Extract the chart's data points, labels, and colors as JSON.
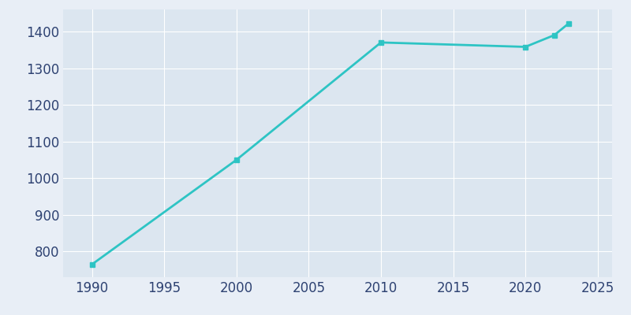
{
  "years": [
    1990,
    2000,
    2010,
    2020,
    2022,
    2023
  ],
  "population": [
    765,
    1050,
    1370,
    1358,
    1390,
    1422
  ],
  "line_color": "#2EC4C4",
  "background_color": "#E8EEF6",
  "plot_bg_color": "#DCE6F0",
  "xlim": [
    1988,
    2026
  ],
  "ylim": [
    730,
    1460
  ],
  "yticks": [
    800,
    900,
    1000,
    1100,
    1200,
    1300,
    1400
  ],
  "xticks": [
    1990,
    1995,
    2000,
    2005,
    2010,
    2015,
    2020,
    2025
  ],
  "tick_label_color": "#2E4272",
  "grid_color": "#FFFFFF",
  "line_width": 2.0,
  "marker": "s",
  "marker_size": 4,
  "tick_fontsize": 12
}
